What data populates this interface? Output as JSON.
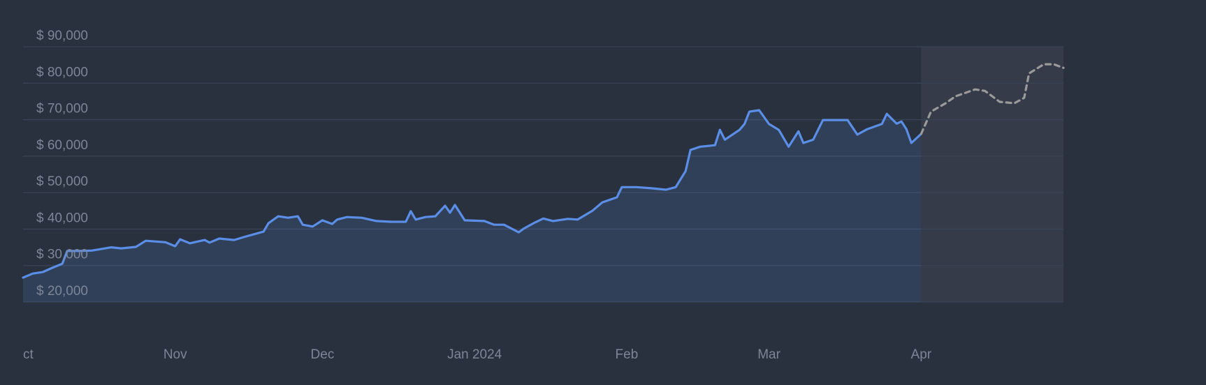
{
  "chart_data": {
    "type": "line",
    "xlim": [
      0,
      212
    ],
    "xticks": [
      {
        "value": 0,
        "label": "Oct"
      },
      {
        "value": 31,
        "label": "Nov"
      },
      {
        "value": 61,
        "label": "Dec"
      },
      {
        "value": 92,
        "label": "Jan 2024"
      },
      {
        "value": 123,
        "label": "Feb"
      },
      {
        "value": 152,
        "label": "Mar"
      },
      {
        "value": 183,
        "label": "Apr"
      }
    ],
    "ylim": [
      20000,
      90000
    ],
    "yticks": [
      {
        "value": 20000,
        "label": "$ 20,000"
      },
      {
        "value": 30000,
        "label": "$ 30,000"
      },
      {
        "value": 40000,
        "label": "$ 40,000"
      },
      {
        "value": 50000,
        "label": "$ 50,000"
      },
      {
        "value": 60000,
        "label": "$ 60,000"
      },
      {
        "value": 70000,
        "label": "$ 70,000"
      },
      {
        "value": 80000,
        "label": "$ 80,000"
      },
      {
        "value": 90000,
        "label": "$ 90,000"
      }
    ],
    "grid": true,
    "series": [
      {
        "color": "#5b8ee6",
        "style": "solid",
        "fill": true,
        "x": [
          0,
          2,
          4,
          6,
          8,
          9,
          11,
          14,
          18,
          20,
          23,
          25,
          29,
          31,
          32,
          34,
          37,
          38,
          40,
          43,
          45,
          49,
          50,
          52,
          54,
          56,
          57,
          59,
          61,
          63,
          64,
          66,
          69,
          72,
          75,
          78,
          79,
          80,
          82,
          84,
          86,
          87,
          88,
          90,
          94,
          96,
          98,
          101,
          102,
          104,
          106,
          108,
          111,
          113,
          116,
          118,
          121,
          122,
          125,
          128,
          131,
          133,
          135,
          136,
          138,
          141,
          142,
          143,
          146,
          147,
          148,
          150,
          152,
          154,
          156,
          158,
          159,
          161,
          163,
          165,
          168,
          170,
          172,
          175,
          176,
          178,
          179,
          180,
          181,
          183
        ],
        "values": [
          26700,
          27800,
          28200,
          29400,
          30500,
          34000,
          34000,
          34100,
          35000,
          34700,
          35100,
          36800,
          36400,
          35300,
          37200,
          36100,
          37000,
          36300,
          37400,
          37000,
          37800,
          39300,
          41600,
          43500,
          43100,
          43500,
          41200,
          40700,
          42400,
          41400,
          42600,
          43300,
          43100,
          42200,
          42000,
          42000,
          44900,
          42600,
          43300,
          43500,
          46400,
          44500,
          46600,
          42400,
          42200,
          41200,
          41200,
          39100,
          40100,
          41600,
          42900,
          42200,
          42800,
          42600,
          45000,
          47300,
          48700,
          51500,
          51500,
          51200,
          50800,
          51500,
          55900,
          61700,
          62600,
          63000,
          67200,
          64500,
          67200,
          68800,
          72200,
          72600,
          68800,
          67200,
          62600,
          66800,
          63600,
          64500,
          69900,
          69900,
          69900,
          65900,
          67400,
          68800,
          71600,
          68900,
          69500,
          67400,
          63600,
          66100
        ]
      },
      {
        "color": "#9a9a9a",
        "style": "dashed",
        "fill": false,
        "shade": "#353b48",
        "x": [
          183,
          185,
          188,
          190,
          194,
          196,
          199,
          202,
          204,
          205,
          208,
          210,
          212
        ],
        "values": [
          66100,
          72200,
          74500,
          76400,
          78300,
          77900,
          74900,
          74500,
          76000,
          82700,
          85200,
          85200,
          84200
        ]
      }
    ]
  }
}
